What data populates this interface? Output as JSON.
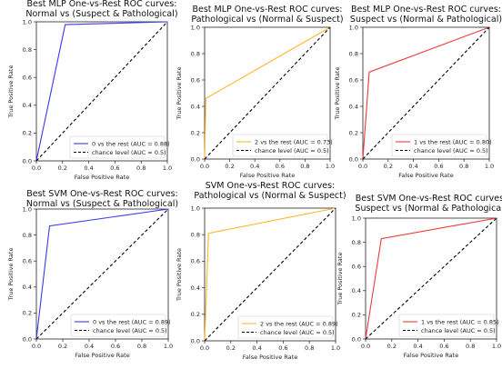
{
  "chart_data": [
    {
      "type": "line",
      "title": "Best MLP One-vs-Rest ROC curves:",
      "subtitle": "Normal vs (Suspect & Pathological)",
      "xlabel": "False Positive Rate",
      "ylabel": "True Positive Rate",
      "xlim": [
        0,
        1
      ],
      "ylim": [
        0,
        1
      ],
      "xticks": [
        "0.0",
        "0.2",
        "0.4",
        "0.6",
        "0.8",
        "1.0"
      ],
      "yticks": [
        "0.0",
        "0.2",
        "0.4",
        "0.6",
        "0.8",
        "1.0"
      ],
      "series": [
        {
          "name": "0 vs the rest (AUC = 0.88)",
          "color": "#3a3aef",
          "x": [
            0,
            0.22,
            1.0
          ],
          "y": [
            0,
            0.98,
            1.0
          ]
        },
        {
          "name": "chance level (AUC = 0.5)",
          "color": "#000000",
          "dashed": true,
          "x": [
            0,
            1
          ],
          "y": [
            0,
            1
          ]
        }
      ],
      "legend": "bottom-right"
    },
    {
      "type": "line",
      "title": "Best MLP One-vs-Rest ROC curves:",
      "subtitle": "Pathological vs (Normal & Suspect)",
      "xlabel": "False Positive Rate",
      "ylabel": "True Positive Rate",
      "xlim": [
        0,
        1
      ],
      "ylim": [
        0,
        1
      ],
      "xticks": [
        "0.0",
        "0.2",
        "0.4",
        "0.6",
        "0.8",
        "1.0"
      ],
      "yticks": [
        "0.0",
        "0.2",
        "0.4",
        "0.6",
        "0.8",
        "1.0"
      ],
      "series": [
        {
          "name": "2 vs the rest (AUC = 0.73)",
          "color": "#ffb52a",
          "x": [
            0,
            0.01,
            1.0
          ],
          "y": [
            0,
            0.46,
            1.0
          ]
        },
        {
          "name": "chance level (AUC = 0.5)",
          "color": "#000000",
          "dashed": true,
          "x": [
            0,
            1
          ],
          "y": [
            0,
            1
          ]
        }
      ],
      "legend": "bottom-right"
    },
    {
      "type": "line",
      "title": "Best MLP One-vs-Rest ROC curves:",
      "subtitle": "Suspect vs (Normal & Pathological)",
      "xlabel": "False Positive Rate",
      "ylabel": "True Positive Rate",
      "xlim": [
        0,
        1
      ],
      "ylim": [
        0,
        1
      ],
      "xticks": [
        "0.0",
        "0.2",
        "0.4",
        "0.6",
        "0.8",
        "1.0"
      ],
      "yticks": [
        "0.0",
        "0.2",
        "0.4",
        "0.6",
        "0.8",
        "1.0"
      ],
      "series": [
        {
          "name": "1 vs the rest (AUC = 0.80)",
          "color": "#ef3a3a",
          "x": [
            0,
            0.05,
            1.0
          ],
          "y": [
            0,
            0.66,
            1.0
          ]
        },
        {
          "name": "chance level (AUC = 0.5)",
          "color": "#000000",
          "dashed": true,
          "x": [
            0,
            1
          ],
          "y": [
            0,
            1
          ]
        }
      ],
      "legend": "bottom-right"
    },
    {
      "type": "line",
      "title": "Best SVM One-vs-Rest ROC curves:",
      "subtitle": "Normal vs (Suspect & Pathological)",
      "xlabel": "False Positive Rate",
      "ylabel": "True Positive Rate",
      "xlim": [
        0,
        1
      ],
      "ylim": [
        0,
        1
      ],
      "xticks": [
        "0.0",
        "0.2",
        "0.4",
        "0.6",
        "0.8",
        "1.0"
      ],
      "yticks": [
        "0.0",
        "0.2",
        "0.4",
        "0.6",
        "0.8",
        "1.0"
      ],
      "series": [
        {
          "name": "0 vs the rest (AUC = 0.89)",
          "color": "#3a3aef",
          "x": [
            0,
            0.1,
            1.0
          ],
          "y": [
            0,
            0.87,
            1.0
          ]
        },
        {
          "name": "chance level (AUC = 0.5)",
          "color": "#000000",
          "dashed": true,
          "x": [
            0,
            1
          ],
          "y": [
            0,
            1
          ]
        }
      ],
      "legend": "bottom-right"
    },
    {
      "type": "line",
      "title": "SVM One-vs-Rest ROC curves:",
      "subtitle": "Pathological vs (Normal & Suspect)",
      "xlabel": "False Positive Rate",
      "ylabel": "True Positive Rate",
      "xlim": [
        0,
        1
      ],
      "ylim": [
        0,
        1
      ],
      "xticks": [
        "0.0",
        "0.2",
        "0.4",
        "0.6",
        "0.8",
        "1.0"
      ],
      "yticks": [
        "0.0",
        "0.2",
        "0.4",
        "0.6",
        "0.8",
        "1.0"
      ],
      "series": [
        {
          "name": "2 vs the rest (AUC = 0.89)",
          "color": "#ffb52a",
          "x": [
            0,
            0.03,
            1.0
          ],
          "y": [
            0,
            0.81,
            1.0
          ]
        },
        {
          "name": "chance level (AUC = 0.5)",
          "color": "#000000",
          "dashed": true,
          "x": [
            0,
            1
          ],
          "y": [
            0,
            1
          ]
        }
      ],
      "legend": "bottom-right"
    },
    {
      "type": "line",
      "title": "Best SVM One-vs-Rest ROC curves:",
      "subtitle": "Suspect vs (Normal & Pathological)",
      "xlabel": "False Positive Rate",
      "ylabel": "True Positive Rate",
      "xlim": [
        0,
        1
      ],
      "ylim": [
        0,
        1
      ],
      "xticks": [
        "0.0",
        "0.2",
        "0.4",
        "0.6",
        "0.8",
        "1.0"
      ],
      "yticks": [
        "0.0",
        "0.2",
        "0.4",
        "0.6",
        "0.8",
        "1.0"
      ],
      "series": [
        {
          "name": "1 vs the rest (AUC = 0.85)",
          "color": "#ef3a3a",
          "x": [
            0,
            0.12,
            1.0
          ],
          "y": [
            0,
            0.83,
            1.0
          ]
        },
        {
          "name": "chance level (AUC = 0.5)",
          "color": "#000000",
          "dashed": true,
          "x": [
            0,
            1
          ],
          "y": [
            0,
            1
          ]
        }
      ],
      "legend": "bottom-right"
    }
  ]
}
